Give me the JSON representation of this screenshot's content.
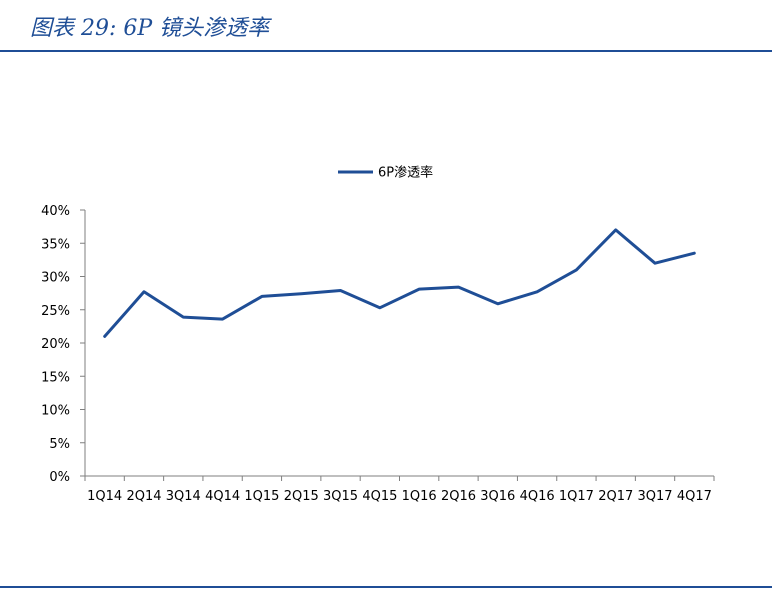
{
  "figure": {
    "title": "图表 29:  6P 镜头渗透率"
  },
  "colors": {
    "accent": "#1f4e96",
    "series": "#1f4e96",
    "axis": "#7f7f7f"
  },
  "chart_data": {
    "type": "line",
    "title": "",
    "xlabel": "",
    "ylabel": "",
    "categories": [
      "1Q14",
      "2Q14",
      "3Q14",
      "4Q14",
      "1Q15",
      "2Q15",
      "3Q15",
      "4Q15",
      "1Q16",
      "2Q16",
      "3Q16",
      "4Q16",
      "1Q17",
      "2Q17",
      "3Q17",
      "4Q17"
    ],
    "series": [
      {
        "name": "6P渗透率",
        "values": [
          21.0,
          27.7,
          23.9,
          23.6,
          27.0,
          27.4,
          27.9,
          25.3,
          28.1,
          28.4,
          25.9,
          27.7,
          31.0,
          37.0,
          32.0,
          33.5
        ]
      }
    ],
    "ylim": [
      0,
      40
    ],
    "yticks": [
      "0%",
      "5%",
      "10%",
      "15%",
      "20%",
      "25%",
      "30%",
      "35%",
      "40%"
    ],
    "grid": false,
    "legend_position": "top-center"
  }
}
